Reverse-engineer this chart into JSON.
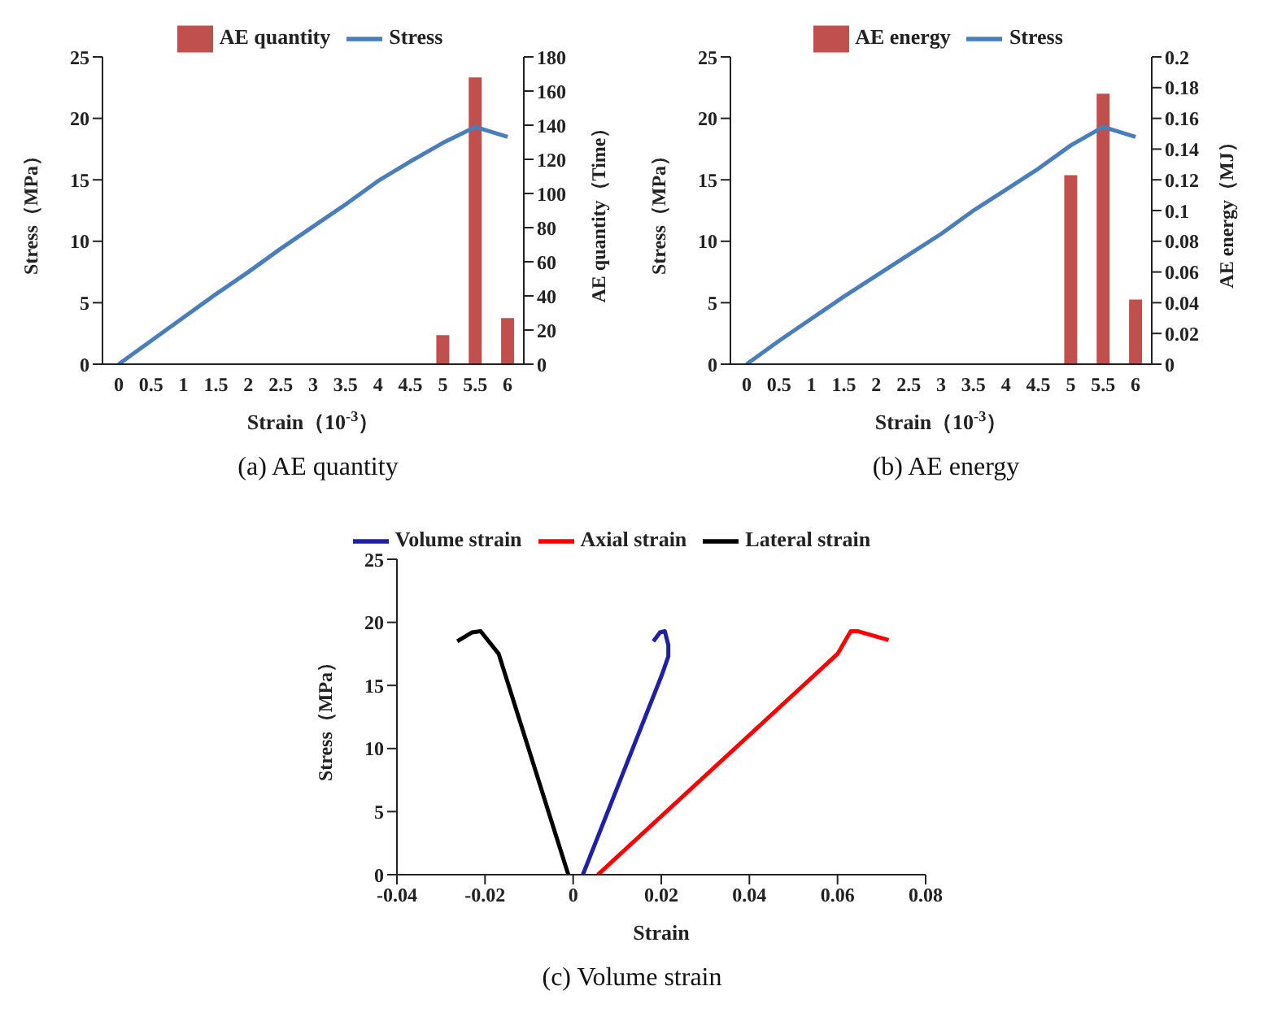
{
  "chart_data": [
    {
      "type": "bar",
      "categories": [
        "0",
        "0.5",
        "1",
        "1.5",
        "2",
        "2.5",
        "3",
        "3.5",
        "4",
        "4.5",
        "5",
        "5.5",
        "6"
      ],
      "xlabel": "Strain（10$^{-3}$）",
      "ylabel": "Stress（MPa）",
      "y2label": "AE quantity（Time）",
      "series": [
        {
          "name": "AE quantity",
          "type": "bar",
          "axis": "y2",
          "color": "#c0504d",
          "values": [
            null,
            null,
            null,
            null,
            null,
            null,
            null,
            null,
            null,
            null,
            17,
            168,
            27
          ]
        },
        {
          "name": "Stress",
          "type": "line",
          "color": "#4a7ebb",
          "values": [
            0,
            1.9,
            3.8,
            5.7,
            7.5,
            9.4,
            11.2,
            13.0,
            14.9,
            16.5,
            18.0,
            19.3,
            18.5
          ]
        }
      ],
      "ylim": [
        0,
        25
      ],
      "yticks": [
        0,
        5,
        10,
        15,
        20,
        25
      ],
      "y2lim": [
        0,
        180
      ],
      "y2ticks": [
        0,
        20,
        40,
        60,
        80,
        100,
        120,
        140,
        160,
        180
      ],
      "grid": false,
      "legend": "top",
      "marker": "none",
      "annotations": [
        "(a) AE quantity"
      ]
    },
    {
      "type": "bar",
      "categories": [
        "0",
        "0.5",
        "1",
        "1.5",
        "2",
        "2.5",
        "3",
        "3.5",
        "4",
        "4.5",
        "5",
        "5.5",
        "6"
      ],
      "xlabel": "Strain（10$^{-3}$）",
      "ylabel": "Stress（MPa）",
      "y2label": "AE energy（MJ）",
      "series": [
        {
          "name": "AE energy",
          "type": "bar",
          "axis": "y2",
          "color": "#c0504d",
          "values": [
            null,
            null,
            null,
            null,
            null,
            null,
            null,
            null,
            null,
            null,
            0.123,
            0.176,
            0.042
          ]
        },
        {
          "name": "Stress",
          "type": "line",
          "color": "#4a7ebb",
          "values": [
            0,
            1.9,
            3.7,
            5.5,
            7.2,
            8.9,
            10.6,
            12.5,
            14.2,
            15.9,
            17.8,
            19.3,
            18.5
          ]
        }
      ],
      "ylim": [
        0,
        25
      ],
      "yticks": [
        0,
        5,
        10,
        15,
        20,
        25
      ],
      "y2lim": [
        0,
        0.2
      ],
      "y2ticks": [
        0,
        0.02,
        0.04,
        0.06,
        0.08,
        0.1,
        0.12,
        0.14,
        0.16,
        0.18,
        0.2
      ],
      "grid": false,
      "legend": "top",
      "marker": "none",
      "annotations": [
        "(b) AE energy"
      ]
    },
    {
      "type": "line",
      "xlabel": "Strain",
      "ylabel": "Stress（MPa）",
      "series": [
        {
          "name": "Volume strain",
          "color": "#1f1fa8",
          "x": [
            0.0022,
            0.0202,
            0.0216,
            0.0216,
            0.0208,
            0.0197,
            0.0182
          ],
          "values": [
            0,
            15.9,
            17.3,
            18.2,
            19.3,
            19.2,
            18.5
          ]
        },
        {
          "name": "Axial strain",
          "color": "#ff0000",
          "x": [
            0.0056,
            0.06,
            0.063,
            0.0645,
            0.0716
          ],
          "values": [
            0,
            17.5,
            19.3,
            19.3,
            18.6
          ]
        },
        {
          "name": "Lateral strain",
          "color": "#000000",
          "x": [
            -0.0011,
            -0.0169,
            -0.021,
            -0.023,
            -0.0263
          ],
          "values": [
            0,
            17.5,
            19.3,
            19.2,
            18.5
          ]
        }
      ],
      "xlim": [
        -0.04,
        0.08
      ],
      "xticks": [
        -0.04,
        -0.02,
        0,
        0.02,
        0.04,
        0.06,
        0.08
      ],
      "ylim": [
        0,
        25
      ],
      "yticks": [
        0,
        5,
        10,
        15,
        20,
        25
      ],
      "grid": false,
      "legend": "top",
      "marker": "none",
      "annotations": [
        "(c) Volume strain"
      ]
    }
  ]
}
